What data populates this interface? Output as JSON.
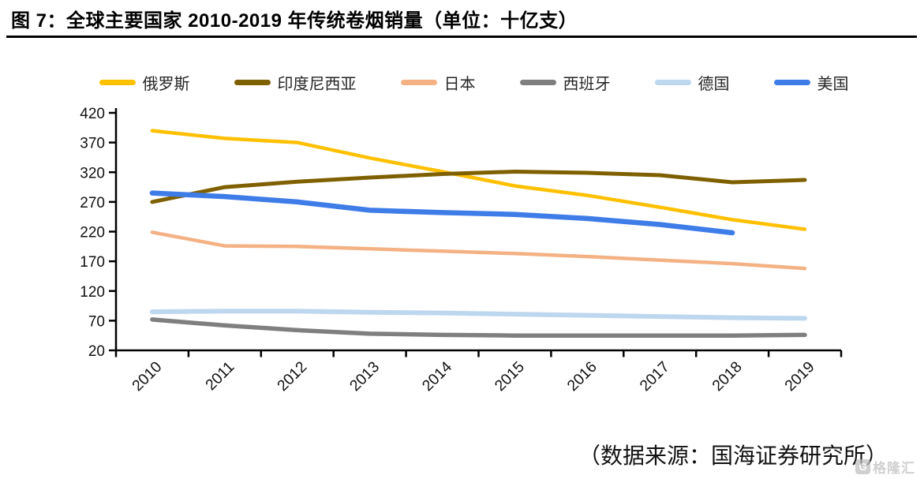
{
  "header": {
    "title": "图 7：全球主要国家 2010-2019 年传统卷烟销量（单位：十亿支）"
  },
  "chart_data": {
    "type": "line",
    "title": "全球主要国家 2010-2019 年传统卷烟销量",
    "unit": "十亿支",
    "categories": [
      "2010",
      "2011",
      "2012",
      "2013",
      "2014",
      "2015",
      "2016",
      "2017",
      "2018",
      "2019"
    ],
    "series": [
      {
        "name": "俄罗斯",
        "color": "#FFC000",
        "stroke_width": 4.5,
        "values": [
          390,
          377,
          370,
          344,
          321,
          297,
          281,
          261,
          240,
          224
        ]
      },
      {
        "name": "印度尼西亚",
        "color": "#7F6000",
        "stroke_width": 5,
        "values": [
          270,
          295,
          304,
          311,
          317,
          321,
          319,
          315,
          303,
          307
        ]
      },
      {
        "name": "日本",
        "color": "#F4B183",
        "stroke_width": 4.5,
        "values": [
          219,
          196,
          195,
          191,
          187,
          183,
          178,
          172,
          166,
          158
        ]
      },
      {
        "name": "西班牙",
        "color": "#7F7F7F",
        "stroke_width": 5.5,
        "values": [
          72,
          62,
          54,
          48,
          46,
          45,
          45,
          45,
          45,
          46
        ]
      },
      {
        "name": "德国",
        "color": "#BDD7EE",
        "stroke_width": 6,
        "values": [
          85,
          86,
          86,
          84,
          83,
          81,
          79,
          77,
          75,
          74
        ]
      },
      {
        "name": "美国",
        "color": "#3E7CE8",
        "stroke_width": 6.5,
        "values": [
          285,
          279,
          270,
          256,
          252,
          249,
          242,
          232,
          218,
          null
        ]
      }
    ],
    "yticks": [
      20,
      70,
      120,
      170,
      220,
      270,
      320,
      370,
      420
    ],
    "ylim": [
      20,
      420
    ],
    "grid": false,
    "legend_position": "top",
    "axis_color": "#000000"
  },
  "source": {
    "text": "（数据来源：国海证券研究所）"
  },
  "watermark": {
    "icon_glyph": "G",
    "text": "格隆汇"
  }
}
